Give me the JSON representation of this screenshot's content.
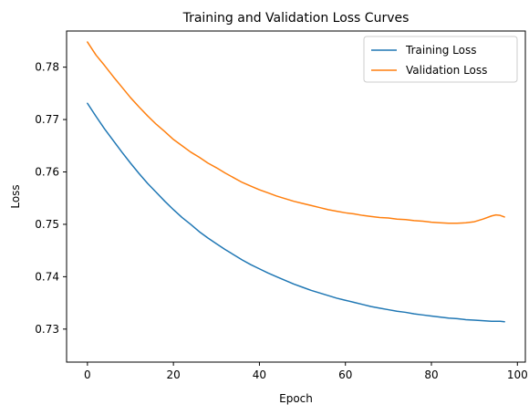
{
  "chart_data": {
    "type": "line",
    "title": "Training and Validation Loss Curves",
    "xlabel": "Epoch",
    "ylabel": "Loss",
    "xlim": [
      -4.85,
      101.85
    ],
    "ylim": [
      0.7237,
      0.7869
    ],
    "x_ticks": [
      0,
      20,
      40,
      60,
      80,
      100
    ],
    "y_ticks": [
      0.73,
      0.74,
      0.75,
      0.76,
      0.77,
      0.78
    ],
    "legend_position": "top-right",
    "grid": false,
    "series": [
      {
        "name": "Training Loss",
        "color": "#1f77b4",
        "x": [
          0,
          2,
          4,
          6,
          8,
          10,
          12,
          14,
          16,
          18,
          20,
          22,
          24,
          26,
          28,
          30,
          32,
          34,
          36,
          38,
          40,
          42,
          44,
          46,
          48,
          50,
          52,
          54,
          56,
          58,
          60,
          62,
          64,
          66,
          68,
          70,
          72,
          74,
          76,
          78,
          80,
          82,
          84,
          86,
          88,
          90,
          92,
          94,
          96,
          97
        ],
        "y": [
          0.7731,
          0.7706,
          0.7682,
          0.766,
          0.7638,
          0.7617,
          0.7597,
          0.7578,
          0.7561,
          0.7544,
          0.7528,
          0.7513,
          0.75,
          0.7486,
          0.7474,
          0.7463,
          0.7452,
          0.7442,
          0.7432,
          0.7423,
          0.7415,
          0.7407,
          0.74,
          0.7393,
          0.7386,
          0.738,
          0.7374,
          0.7369,
          0.7364,
          0.7359,
          0.7355,
          0.7351,
          0.7347,
          0.7343,
          0.734,
          0.7337,
          0.7334,
          0.7332,
          0.7329,
          0.7327,
          0.7325,
          0.7323,
          0.7321,
          0.732,
          0.7318,
          0.7317,
          0.7316,
          0.7315,
          0.7315,
          0.7314
        ]
      },
      {
        "name": "Validation Loss",
        "color": "#ff7f0e",
        "x": [
          0,
          2,
          4,
          6,
          8,
          10,
          12,
          14,
          16,
          18,
          20,
          22,
          24,
          26,
          28,
          30,
          32,
          34,
          36,
          38,
          40,
          42,
          44,
          46,
          48,
          50,
          52,
          54,
          56,
          58,
          60,
          62,
          64,
          66,
          68,
          70,
          72,
          74,
          76,
          78,
          80,
          82,
          84,
          86,
          88,
          90,
          92,
          94,
          95,
          96,
          97
        ],
        "y": [
          0.7848,
          0.7823,
          0.7803,
          0.7782,
          0.7762,
          0.7742,
          0.7724,
          0.7707,
          0.7691,
          0.7677,
          0.7662,
          0.765,
          0.7638,
          0.7628,
          0.7617,
          0.7608,
          0.7598,
          0.7589,
          0.758,
          0.7573,
          0.7566,
          0.756,
          0.7554,
          0.7549,
          0.7544,
          0.754,
          0.7536,
          0.7532,
          0.7528,
          0.7525,
          0.7522,
          0.752,
          0.7517,
          0.7515,
          0.7513,
          0.7512,
          0.751,
          0.7509,
          0.7507,
          0.7506,
          0.7504,
          0.7503,
          0.7502,
          0.7502,
          0.7503,
          0.7505,
          0.751,
          0.7516,
          0.7518,
          0.7517,
          0.7514
        ]
      }
    ]
  }
}
